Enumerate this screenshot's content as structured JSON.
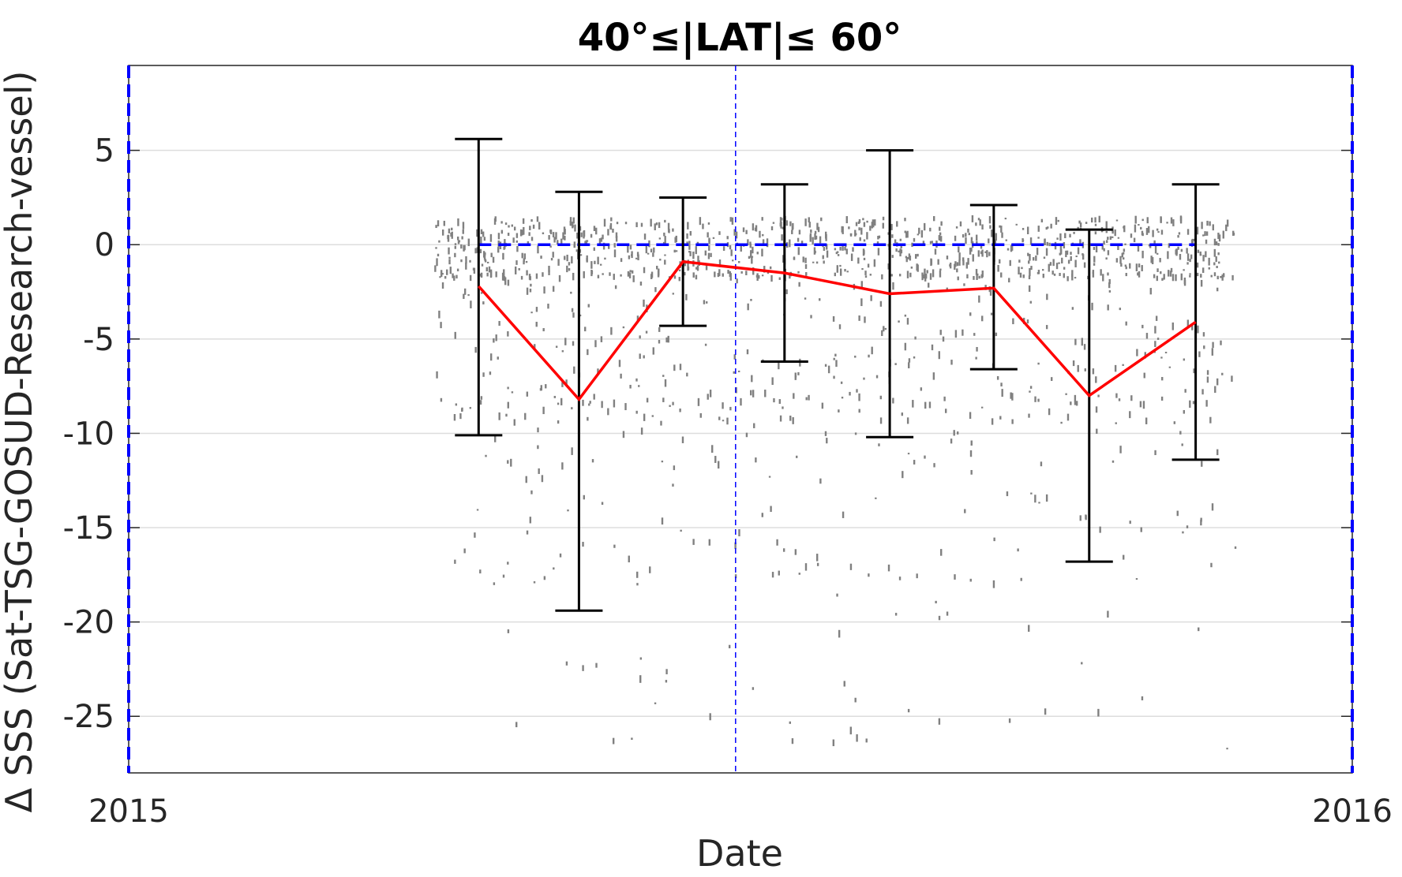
{
  "chart_data": {
    "type": "scatter",
    "title": "40°≤|LAT|≤ 60°",
    "xlabel": "Date",
    "ylabel": "Δ SSS (Sat-TSG-GOSUD-Research-vessel)",
    "x_ticks": [
      "2015",
      "2016"
    ],
    "y_ticks": [
      5,
      0,
      -5,
      -10,
      -15,
      -20,
      -25
    ],
    "xlim": [
      2015.0,
      2016.0
    ],
    "ylim": [
      -28,
      9.5
    ],
    "grid": "horizontal",
    "colors": {
      "points": "#808080",
      "mean_line": "#ff0000",
      "error_bars": "#000000",
      "zero_line": "#0000ff",
      "date_markers": "#0000ff",
      "grid": "#dddddd"
    },
    "zero_line": {
      "x_start": 2015.286,
      "x_end": 2015.872,
      "y": 0
    },
    "date_markers": [
      2015.0,
      2015.496,
      2016.0
    ],
    "series": [
      {
        "type": "line_errorbar",
        "x": [
          2015.286,
          2015.368,
          2015.453,
          2015.536,
          2015.622,
          2015.707,
          2015.785,
          2015.872
        ],
        "mean": [
          -2.2,
          -8.2,
          -0.9,
          -1.5,
          -2.6,
          -2.3,
          -8.0,
          -4.1
        ],
        "upper": [
          5.6,
          2.8,
          2.5,
          3.2,
          5.0,
          2.1,
          0.8,
          3.2
        ],
        "lower": [
          -10.1,
          -19.4,
          -4.3,
          -6.2,
          -10.2,
          -6.6,
          -16.8,
          -11.4
        ]
      }
    ]
  }
}
